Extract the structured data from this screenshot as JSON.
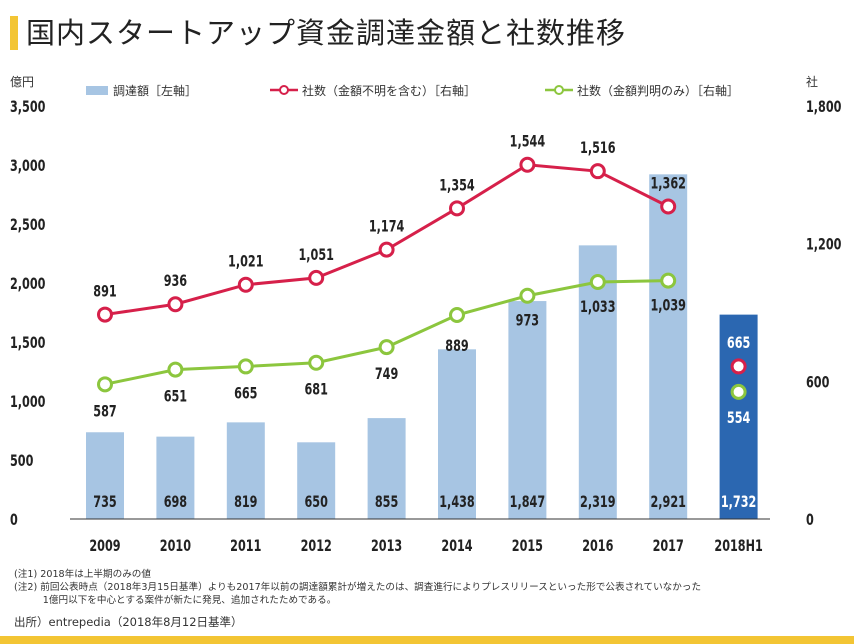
{
  "title": "国内スタートアップ資金調達金額と社数推移",
  "chart_data": {
    "type": "bar",
    "categories": [
      "2009",
      "2010",
      "2011",
      "2012",
      "2013",
      "2014",
      "2015",
      "2016",
      "2017",
      "2018H1"
    ],
    "left_axis": {
      "unit_label": "億円",
      "ylim": [
        0,
        3500
      ],
      "ticks": [
        "0",
        "500",
        "1,000",
        "1,500",
        "2,000",
        "2,500",
        "3,000",
        "3,500"
      ]
    },
    "right_axis": {
      "unit_label": "社",
      "ylim": [
        0,
        1800
      ],
      "ticks": [
        "0",
        "600",
        "1,200",
        "1,800"
      ]
    },
    "grid": false,
    "legend_position": "top",
    "series": [
      {
        "name": "調達額［左軸］",
        "kind": "bar",
        "axis": "left",
        "color": "#a7c5e3",
        "highlight_color": "#2b67b1",
        "values": [
          735,
          698,
          819,
          650,
          855,
          1438,
          1847,
          2319,
          2921,
          1732
        ],
        "labels": [
          "735",
          "698",
          "819",
          "650",
          "855",
          "1,438",
          "1,847",
          "2,319",
          "2,921",
          "1,732"
        ]
      },
      {
        "name": "社数（金額不明を含む）［右軸］",
        "kind": "line",
        "axis": "right",
        "color": "#d6204a",
        "values": [
          891,
          936,
          1021,
          1051,
          1174,
          1354,
          1544,
          1516,
          1362,
          665
        ],
        "labels": [
          "891",
          "936",
          "1,021",
          "1,051",
          "1,174",
          "1,354",
          "1,544",
          "1,516",
          "1,362",
          "665"
        ]
      },
      {
        "name": "社数（金額判明のみ）［右軸］",
        "kind": "line",
        "axis": "right",
        "color": "#8cc63e",
        "values": [
          587,
          651,
          665,
          681,
          749,
          889,
          973,
          1033,
          1039,
          554
        ],
        "labels": [
          "587",
          "651",
          "665",
          "681",
          "749",
          "889",
          "973",
          "1,033",
          "1,039",
          "554"
        ]
      }
    ]
  },
  "notes": [
    "(注1) 2018年は上半期のみの値",
    "(注2) 前回公表時点（2018年3月15日基準）よりも2017年以前の調達額累計が増えたのは、調査進行によりプレスリリースといった形で公表されていなかった",
    "　　　1億円以下を中心とする案件が新たに発見、追加されたためである。"
  ],
  "source": "出所）entrepedia（2018年8月12日基準）"
}
